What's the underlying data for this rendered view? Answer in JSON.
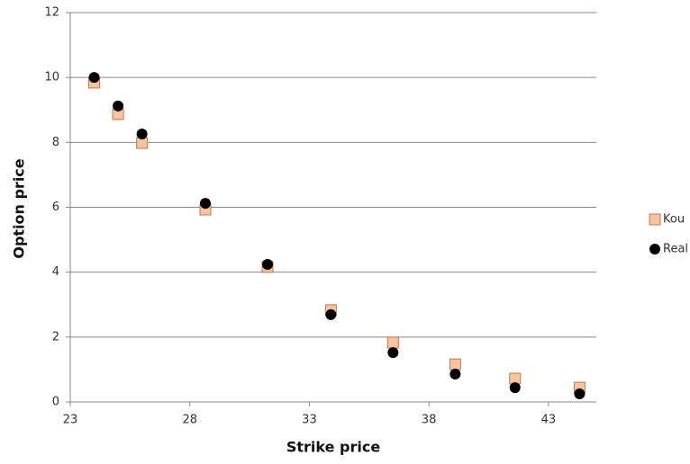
{
  "chart_data": {
    "type": "scatter",
    "x_label": "Strike price",
    "y_label": "Option price",
    "x": [
      24,
      25,
      26,
      28.65,
      31.25,
      33.9,
      36.5,
      39.1,
      41.6,
      44.3
    ],
    "series": [
      {
        "name": "Kou",
        "color": "#f8c4a0",
        "marker": "square",
        "values": [
          9.84,
          8.87,
          7.98,
          5.93,
          4.16,
          2.83,
          1.83,
          1.16,
          0.72,
          0.44
        ]
      },
      {
        "name": "Real",
        "color": "#000000",
        "marker": "circle",
        "values": [
          10.0,
          9.12,
          8.26,
          6.12,
          4.24,
          2.69,
          1.52,
          0.86,
          0.44,
          0.25
        ]
      }
    ],
    "xlim": [
      23,
      45
    ],
    "xticks": [
      23,
      28,
      33,
      38,
      43
    ],
    "ylim": [
      0,
      12
    ],
    "yticks": [
      0,
      2,
      4,
      6,
      8,
      10,
      12
    ],
    "grid": true,
    "legend": "right"
  }
}
